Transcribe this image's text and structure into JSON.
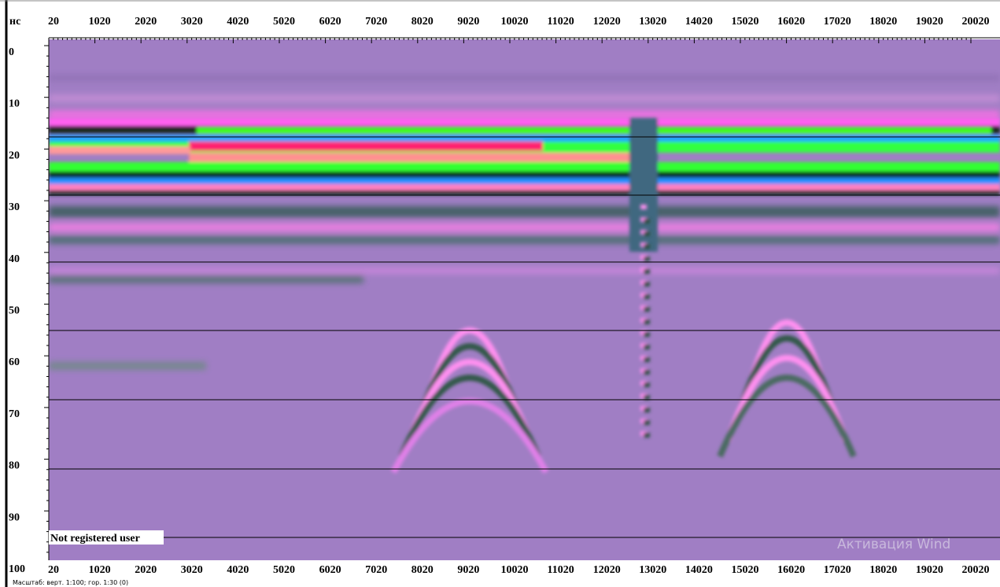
{
  "axis": {
    "unit": "нс",
    "x_labels": [
      20,
      1020,
      2020,
      3020,
      4020,
      5020,
      6020,
      7020,
      8020,
      9020,
      10020,
      11020,
      12020,
      13020,
      14020,
      15020,
      16020,
      17020,
      18020,
      19020,
      20020
    ],
    "y_labels": [
      0,
      10,
      20,
      30,
      40,
      50,
      60,
      70,
      80,
      90,
      100
    ]
  },
  "overlay_text": "Not registered user",
  "status": "Масштаб: верт. 1:100; гор. 1:30 (0)",
  "watermark": "Активация Wind"
}
